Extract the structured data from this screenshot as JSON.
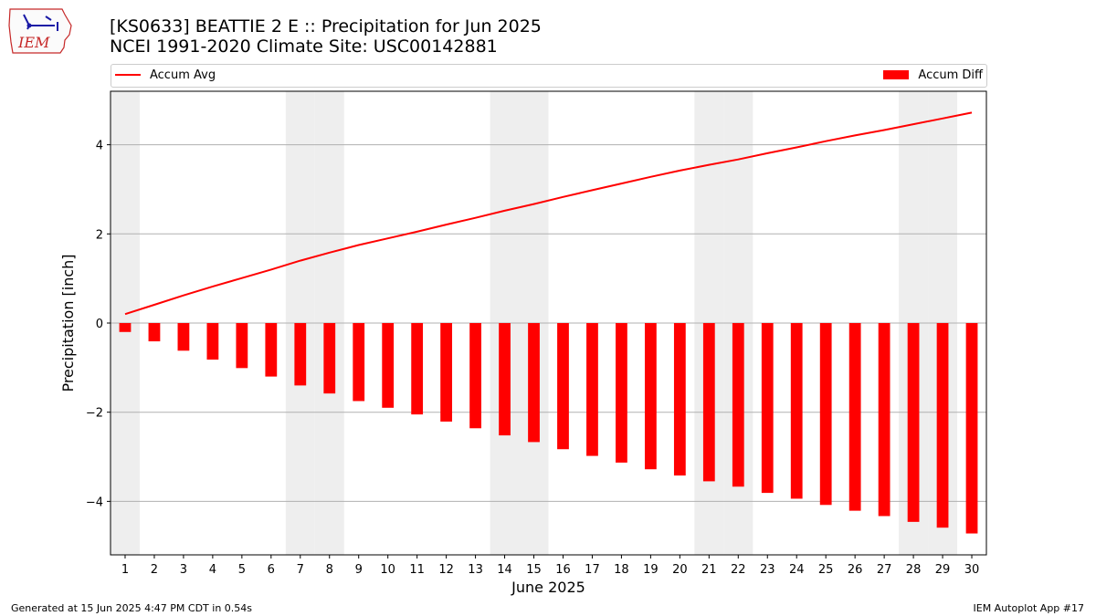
{
  "header": {
    "title_line1": "[KS0633] BEATTIE 2 E :: Precipitation for Jun 2025",
    "title_line2": "NCEI 1991-2020 Climate Site: USC00142881"
  },
  "logo": {
    "text": "IEM",
    "icon": "iowa-state-outline-icon"
  },
  "footer": {
    "left": "Generated at 15 Jun 2025 4:47 PM CDT in 0.54s",
    "right": "IEM Autoplot App #17"
  },
  "colors": {
    "series": "#ff0000",
    "weekend_band": "#eeeeee",
    "grid": "#b0b0b0"
  },
  "chart_data": {
    "type": "bar",
    "xlabel": "June 2025",
    "ylabel": "Precipitation [inch]",
    "x": [
      1,
      2,
      3,
      4,
      5,
      6,
      7,
      8,
      9,
      10,
      11,
      12,
      13,
      14,
      15,
      16,
      17,
      18,
      19,
      20,
      21,
      22,
      23,
      24,
      25,
      26,
      27,
      28,
      29,
      30
    ],
    "xlim": [
      0.5,
      30.5
    ],
    "ylim": [
      -5.2,
      5.2
    ],
    "yticks": [
      -4,
      -2,
      0,
      2,
      4
    ],
    "grid": "horizontal",
    "legend_placement": "top, above plot",
    "weekend_days": [
      1,
      7,
      8,
      14,
      15,
      21,
      22,
      28,
      29
    ],
    "series": [
      {
        "name": "Accum Avg",
        "kind": "line",
        "values": [
          0.2,
          0.41,
          0.62,
          0.82,
          1.01,
          1.2,
          1.4,
          1.58,
          1.75,
          1.9,
          2.05,
          2.21,
          2.36,
          2.52,
          2.67,
          2.83,
          2.98,
          3.13,
          3.28,
          3.42,
          3.55,
          3.67,
          3.81,
          3.94,
          4.08,
          4.21,
          4.33,
          4.46,
          4.59,
          4.72
        ]
      },
      {
        "name": "Accum Diff",
        "kind": "bar",
        "values": [
          -0.2,
          -0.41,
          -0.62,
          -0.82,
          -1.01,
          -1.2,
          -1.4,
          -1.58,
          -1.75,
          -1.9,
          -2.05,
          -2.21,
          -2.36,
          -2.52,
          -2.67,
          -2.83,
          -2.98,
          -3.13,
          -3.28,
          -3.42,
          -3.55,
          -3.67,
          -3.81,
          -3.94,
          -4.08,
          -4.21,
          -4.33,
          -4.46,
          -4.59,
          -4.72
        ]
      }
    ]
  }
}
